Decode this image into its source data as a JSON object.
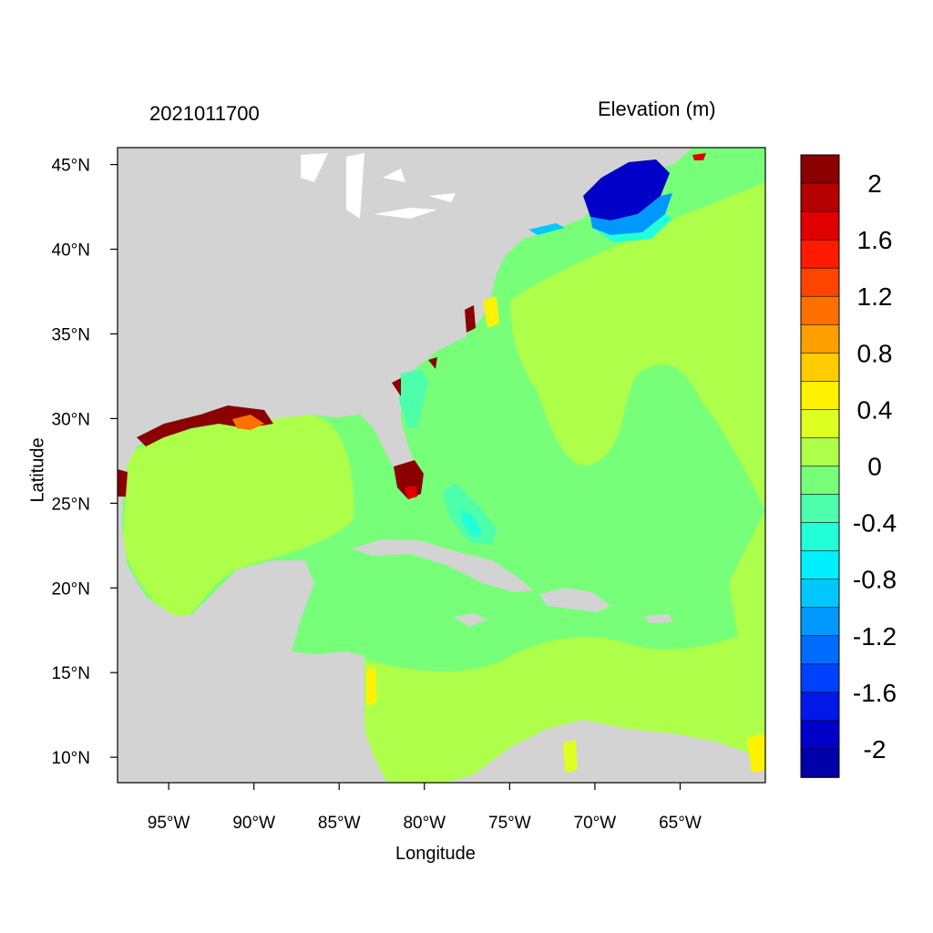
{
  "title_left": "2021011700",
  "title_right": "Elevation (m)",
  "xlabel": "Longitude",
  "ylabel": "Latitude",
  "x_ticks": [
    "95°W",
    "90°W",
    "85°W",
    "80°W",
    "75°W",
    "70°W",
    "65°W"
  ],
  "x_tick_values": [
    -95,
    -90,
    -85,
    -80,
    -75,
    -70,
    -65
  ],
  "y_ticks": [
    "45°N",
    "40°N",
    "35°N",
    "30°N",
    "25°N",
    "20°N",
    "15°N",
    "10°N"
  ],
  "y_tick_values": [
    45,
    40,
    35,
    30,
    25,
    20,
    15,
    10
  ],
  "lon_range": [
    -98,
    -60
  ],
  "lat_range": [
    8.5,
    46
  ],
  "colorbar": {
    "labels": [
      "2",
      "1.6",
      "1.2",
      "0.8",
      "0.4",
      "0",
      "-0.4",
      "-0.8",
      "-1.2",
      "-1.6",
      "-2"
    ],
    "colors": [
      "#8b0000",
      "#b40000",
      "#e00000",
      "#ff1a00",
      "#ff4400",
      "#ff7000",
      "#ff9f00",
      "#ffcc00",
      "#fff200",
      "#ddff22",
      "#adff4a",
      "#78ff7a",
      "#4dffaa",
      "#22ffd8",
      "#00f0ff",
      "#00c8ff",
      "#0098ff",
      "#006cff",
      "#0040ff",
      "#0018e8",
      "#0000c8",
      "#0000a8"
    ]
  },
  "colors": {
    "land": "#d3d3d3",
    "ocean_zero": "#78ff7a",
    "ocean_pos": "#adff4a",
    "gulf_maine_low": "#0018e8",
    "florida_high": "#8b0000"
  }
}
